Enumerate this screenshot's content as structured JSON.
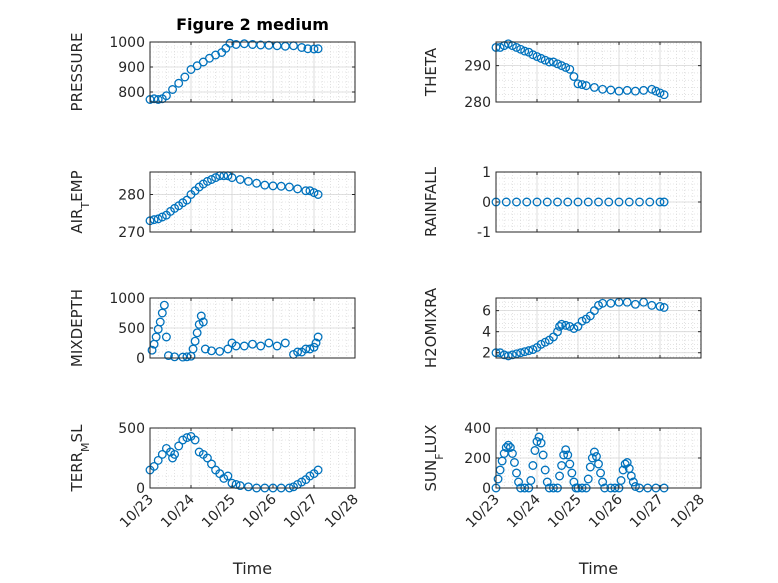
{
  "figure": {
    "title": "Figure 2 medium",
    "marker_color": "#0072BD"
  },
  "chart_data": [
    {
      "type": "scatter",
      "title": "Figure 2 medium",
      "ylabel": "PRESSURE",
      "ylim": [
        760,
        1000
      ],
      "yticks": [
        800,
        900,
        1000
      ],
      "xlim": [
        0,
        5
      ],
      "xticks": [
        "10/23",
        "10/24",
        "10/25",
        "10/26",
        "10/27",
        "10/28"
      ],
      "show_xticklabels": false,
      "xlabel": "",
      "grid": true,
      "points": [
        [
          0,
          770
        ],
        [
          0.1,
          773
        ],
        [
          0.2,
          770
        ],
        [
          0.3,
          773
        ],
        [
          0.4,
          785
        ],
        [
          0.55,
          810
        ],
        [
          0.7,
          835
        ],
        [
          0.85,
          860
        ],
        [
          1.0,
          890
        ],
        [
          1.15,
          905
        ],
        [
          1.3,
          920
        ],
        [
          1.45,
          935
        ],
        [
          1.6,
          948
        ],
        [
          1.75,
          958
        ],
        [
          1.85,
          975
        ],
        [
          1.95,
          995
        ],
        [
          2.1,
          990
        ],
        [
          2.3,
          993
        ],
        [
          2.5,
          990
        ],
        [
          2.7,
          988
        ],
        [
          2.9,
          987
        ],
        [
          3.1,
          985
        ],
        [
          3.3,
          983
        ],
        [
          3.5,
          985
        ],
        [
          3.7,
          978
        ],
        [
          3.85,
          973
        ],
        [
          4.0,
          972
        ],
        [
          4.1,
          973
        ]
      ]
    },
    {
      "type": "scatter",
      "title": "",
      "ylabel": "THETA",
      "ylim": [
        280,
        296.5
      ],
      "yticks": [
        280,
        290
      ],
      "xlim": [
        0,
        5
      ],
      "xticks": [
        "10/23",
        "10/24",
        "10/25",
        "10/26",
        "10/27",
        "10/28"
      ],
      "show_xticklabels": false,
      "xlabel": "",
      "grid": true,
      "points": [
        [
          0,
          295
        ],
        [
          0.1,
          295
        ],
        [
          0.2,
          295.5
        ],
        [
          0.3,
          296
        ],
        [
          0.4,
          295.5
        ],
        [
          0.5,
          295
        ],
        [
          0.6,
          294.5
        ],
        [
          0.7,
          294
        ],
        [
          0.8,
          293.7
        ],
        [
          0.9,
          293
        ],
        [
          1.0,
          292.5
        ],
        [
          1.1,
          292
        ],
        [
          1.2,
          291.5
        ],
        [
          1.3,
          291
        ],
        [
          1.4,
          291
        ],
        [
          1.5,
          290.5
        ],
        [
          1.6,
          290
        ],
        [
          1.7,
          289.5
        ],
        [
          1.8,
          289
        ],
        [
          1.9,
          287
        ],
        [
          2.0,
          285
        ],
        [
          2.1,
          284.8
        ],
        [
          2.2,
          284.5
        ],
        [
          2.4,
          284
        ],
        [
          2.6,
          283.5
        ],
        [
          2.8,
          283.3
        ],
        [
          3.0,
          283
        ],
        [
          3.2,
          283.2
        ],
        [
          3.4,
          283
        ],
        [
          3.6,
          283.2
        ],
        [
          3.8,
          283.5
        ],
        [
          3.9,
          283
        ],
        [
          4.0,
          282.5
        ],
        [
          4.1,
          282
        ]
      ]
    },
    {
      "type": "scatter",
      "title": "",
      "ylabel": "AIR_TEMP",
      "ylim": [
        270,
        286
      ],
      "yticks": [
        270,
        280
      ],
      "xlim": [
        0,
        5
      ],
      "xticks": [
        "10/23",
        "10/24",
        "10/25",
        "10/26",
        "10/27",
        "10/28"
      ],
      "show_xticklabels": false,
      "xlabel": "",
      "grid": true,
      "points": [
        [
          0,
          273
        ],
        [
          0.1,
          273.3
        ],
        [
          0.2,
          273.5
        ],
        [
          0.3,
          274
        ],
        [
          0.4,
          274.5
        ],
        [
          0.5,
          275.5
        ],
        [
          0.6,
          276.3
        ],
        [
          0.7,
          277
        ],
        [
          0.8,
          277.8
        ],
        [
          0.9,
          278.5
        ],
        [
          1.0,
          280
        ],
        [
          1.1,
          281
        ],
        [
          1.2,
          282
        ],
        [
          1.3,
          282.8
        ],
        [
          1.4,
          283.5
        ],
        [
          1.5,
          284
        ],
        [
          1.6,
          284.5
        ],
        [
          1.7,
          285
        ],
        [
          1.8,
          285
        ],
        [
          1.9,
          285
        ],
        [
          2.0,
          284.5
        ],
        [
          2.2,
          284
        ],
        [
          2.4,
          283.5
        ],
        [
          2.6,
          283
        ],
        [
          2.8,
          282.5
        ],
        [
          3.0,
          282.3
        ],
        [
          3.2,
          282.2
        ],
        [
          3.4,
          282
        ],
        [
          3.6,
          281.5
        ],
        [
          3.8,
          281
        ],
        [
          3.9,
          281
        ],
        [
          4.0,
          280.5
        ],
        [
          4.1,
          280
        ]
      ]
    },
    {
      "type": "scatter",
      "title": "",
      "ylabel": "RAINFALL",
      "ylim": [
        -1,
        1
      ],
      "yticks": [
        -1,
        0,
        1
      ],
      "xlim": [
        0,
        5
      ],
      "xticks": [
        "10/23",
        "10/24",
        "10/25",
        "10/26",
        "10/27",
        "10/28"
      ],
      "show_xticklabels": false,
      "xlabel": "",
      "grid": true,
      "points": [
        [
          0,
          0
        ],
        [
          0.25,
          0
        ],
        [
          0.5,
          0
        ],
        [
          0.75,
          0
        ],
        [
          1.0,
          0
        ],
        [
          1.25,
          0
        ],
        [
          1.5,
          0
        ],
        [
          1.75,
          0
        ],
        [
          2.0,
          0
        ],
        [
          2.25,
          0
        ],
        [
          2.5,
          0
        ],
        [
          2.75,
          0
        ],
        [
          3.0,
          0
        ],
        [
          3.25,
          0
        ],
        [
          3.5,
          0
        ],
        [
          3.75,
          0
        ],
        [
          4.0,
          0
        ],
        [
          4.1,
          0
        ]
      ]
    },
    {
      "type": "scatter",
      "title": "",
      "ylabel": "MIXDEPTH",
      "ylim": [
        0,
        1000
      ],
      "yticks": [
        0,
        500,
        1000
      ],
      "xlim": [
        0,
        5
      ],
      "xticks": [
        "10/23",
        "10/24",
        "10/25",
        "10/26",
        "10/27",
        "10/28"
      ],
      "show_xticklabels": false,
      "xlabel": "",
      "grid": true,
      "points": [
        [
          0.05,
          130
        ],
        [
          0.1,
          230
        ],
        [
          0.15,
          350
        ],
        [
          0.2,
          480
        ],
        [
          0.25,
          600
        ],
        [
          0.3,
          750
        ],
        [
          0.35,
          880
        ],
        [
          0.4,
          350
        ],
        [
          0.45,
          40
        ],
        [
          0.6,
          20
        ],
        [
          0.8,
          15
        ],
        [
          0.9,
          20
        ],
        [
          1.0,
          30
        ],
        [
          1.05,
          150
        ],
        [
          1.1,
          280
        ],
        [
          1.15,
          420
        ],
        [
          1.2,
          560
        ],
        [
          1.25,
          700
        ],
        [
          1.3,
          600
        ],
        [
          1.35,
          150
        ],
        [
          1.5,
          120
        ],
        [
          1.7,
          110
        ],
        [
          1.9,
          150
        ],
        [
          2.0,
          250
        ],
        [
          2.1,
          200
        ],
        [
          2.3,
          200
        ],
        [
          2.5,
          230
        ],
        [
          2.7,
          200
        ],
        [
          2.9,
          250
        ],
        [
          3.1,
          200
        ],
        [
          3.3,
          250
        ],
        [
          3.5,
          60
        ],
        [
          3.6,
          100
        ],
        [
          3.7,
          100
        ],
        [
          3.8,
          150
        ],
        [
          3.9,
          150
        ],
        [
          4.0,
          180
        ],
        [
          4.05,
          250
        ],
        [
          4.1,
          350
        ]
      ]
    },
    {
      "type": "scatter",
      "title": "",
      "ylabel": "H2OMIXRA",
      "ylim": [
        1.5,
        7.2
      ],
      "yticks": [
        2,
        4,
        6
      ],
      "xlim": [
        0,
        5
      ],
      "xticks": [
        "10/23",
        "10/24",
        "10/25",
        "10/26",
        "10/27",
        "10/28"
      ],
      "show_xticklabels": false,
      "xlabel": "",
      "grid": true,
      "points": [
        [
          0,
          2
        ],
        [
          0.1,
          2
        ],
        [
          0.2,
          1.8
        ],
        [
          0.3,
          1.7
        ],
        [
          0.4,
          1.8
        ],
        [
          0.5,
          1.9
        ],
        [
          0.6,
          2
        ],
        [
          0.7,
          2.1
        ],
        [
          0.8,
          2.2
        ],
        [
          0.9,
          2.3
        ],
        [
          1.0,
          2.5
        ],
        [
          1.1,
          2.8
        ],
        [
          1.2,
          3
        ],
        [
          1.3,
          3.2
        ],
        [
          1.4,
          3.5
        ],
        [
          1.5,
          4
        ],
        [
          1.55,
          4.5
        ],
        [
          1.6,
          4.7
        ],
        [
          1.7,
          4.6
        ],
        [
          1.8,
          4.5
        ],
        [
          1.9,
          4.3
        ],
        [
          2.0,
          4.5
        ],
        [
          2.1,
          5
        ],
        [
          2.2,
          5.2
        ],
        [
          2.3,
          5.5
        ],
        [
          2.4,
          6
        ],
        [
          2.5,
          6.5
        ],
        [
          2.6,
          6.7
        ],
        [
          2.8,
          6.7
        ],
        [
          3.0,
          6.8
        ],
        [
          3.2,
          6.8
        ],
        [
          3.4,
          6.6
        ],
        [
          3.6,
          6.8
        ],
        [
          3.8,
          6.5
        ],
        [
          4.0,
          6.4
        ],
        [
          4.1,
          6.3
        ]
      ]
    },
    {
      "type": "scatter",
      "title": "",
      "ylabel": "TERR_MSL",
      "ylim": [
        0,
        500
      ],
      "yticks": [
        0,
        500
      ],
      "xlim": [
        0,
        5
      ],
      "xticks": [
        "10/23",
        "10/24",
        "10/25",
        "10/26",
        "10/27",
        "10/28"
      ],
      "show_xticklabels": true,
      "xlabel": "Time",
      "grid": true,
      "points": [
        [
          0,
          150
        ],
        [
          0.1,
          180
        ],
        [
          0.2,
          230
        ],
        [
          0.3,
          280
        ],
        [
          0.4,
          330
        ],
        [
          0.5,
          300
        ],
        [
          0.55,
          250
        ],
        [
          0.6,
          280
        ],
        [
          0.7,
          350
        ],
        [
          0.8,
          400
        ],
        [
          0.9,
          420
        ],
        [
          1.0,
          430
        ],
        [
          1.1,
          400
        ],
        [
          1.2,
          300
        ],
        [
          1.3,
          280
        ],
        [
          1.4,
          250
        ],
        [
          1.5,
          200
        ],
        [
          1.6,
          150
        ],
        [
          1.7,
          120
        ],
        [
          1.8,
          80
        ],
        [
          1.9,
          100
        ],
        [
          2.0,
          40
        ],
        [
          2.1,
          30
        ],
        [
          2.2,
          20
        ],
        [
          2.4,
          10
        ],
        [
          2.6,
          0
        ],
        [
          2.8,
          0
        ],
        [
          3.0,
          0
        ],
        [
          3.2,
          0
        ],
        [
          3.4,
          0
        ],
        [
          3.5,
          10
        ],
        [
          3.6,
          30
        ],
        [
          3.7,
          50
        ],
        [
          3.8,
          70
        ],
        [
          3.9,
          100
        ],
        [
          4.0,
          120
        ],
        [
          4.1,
          150
        ]
      ]
    },
    {
      "type": "scatter",
      "title": "",
      "ylabel": "SUN_FLUX",
      "ylim": [
        0,
        400
      ],
      "yticks": [
        0,
        200,
        400
      ],
      "xlim": [
        0,
        5
      ],
      "xticks": [
        "10/23",
        "10/24",
        "10/25",
        "10/26",
        "10/27",
        "10/28"
      ],
      "show_xticklabels": true,
      "xlabel": "Time",
      "grid": true,
      "points": [
        [
          0.0,
          0
        ],
        [
          0.05,
          60
        ],
        [
          0.1,
          120
        ],
        [
          0.15,
          180
        ],
        [
          0.2,
          230
        ],
        [
          0.25,
          270
        ],
        [
          0.3,
          285
        ],
        [
          0.35,
          270
        ],
        [
          0.4,
          230
        ],
        [
          0.45,
          170
        ],
        [
          0.5,
          100
        ],
        [
          0.55,
          40
        ],
        [
          0.6,
          0
        ],
        [
          0.7,
          0
        ],
        [
          0.8,
          0
        ],
        [
          0.85,
          50
        ],
        [
          0.9,
          150
        ],
        [
          0.95,
          250
        ],
        [
          1.0,
          310
        ],
        [
          1.05,
          340
        ],
        [
          1.1,
          300
        ],
        [
          1.15,
          220
        ],
        [
          1.2,
          120
        ],
        [
          1.25,
          40
        ],
        [
          1.3,
          0
        ],
        [
          1.4,
          0
        ],
        [
          1.5,
          0
        ],
        [
          1.55,
          80
        ],
        [
          1.6,
          150
        ],
        [
          1.65,
          220
        ],
        [
          1.7,
          255
        ],
        [
          1.75,
          220
        ],
        [
          1.8,
          160
        ],
        [
          1.85,
          100
        ],
        [
          1.9,
          40
        ],
        [
          1.95,
          0
        ],
        [
          2.0,
          0
        ],
        [
          2.1,
          0
        ],
        [
          2.2,
          0
        ],
        [
          2.25,
          60
        ],
        [
          2.3,
          140
        ],
        [
          2.35,
          200
        ],
        [
          2.4,
          240
        ],
        [
          2.45,
          210
        ],
        [
          2.5,
          160
        ],
        [
          2.55,
          100
        ],
        [
          2.6,
          40
        ],
        [
          2.65,
          0
        ],
        [
          2.8,
          0
        ],
        [
          2.9,
          0
        ],
        [
          3.0,
          0
        ],
        [
          3.05,
          50
        ],
        [
          3.1,
          120
        ],
        [
          3.15,
          160
        ],
        [
          3.2,
          170
        ],
        [
          3.25,
          130
        ],
        [
          3.3,
          80
        ],
        [
          3.35,
          40
        ],
        [
          3.4,
          10
        ],
        [
          3.5,
          0
        ],
        [
          3.7,
          0
        ],
        [
          3.9,
          0
        ],
        [
          4.1,
          0
        ]
      ]
    }
  ]
}
